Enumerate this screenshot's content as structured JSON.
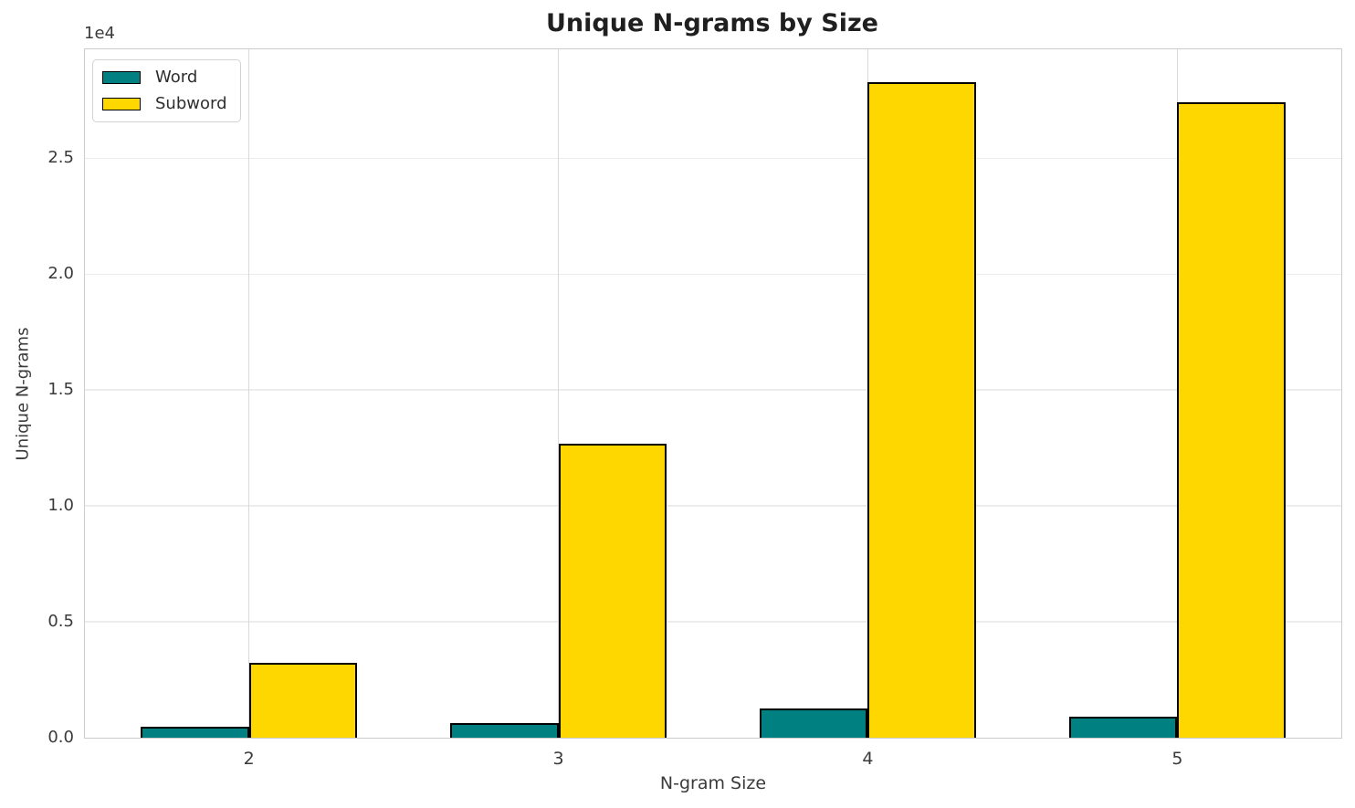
{
  "figure": {
    "background": "#ffffff"
  },
  "chart_data": {
    "type": "bar",
    "title": "Unique N-grams by Size",
    "xlabel": "N-gram Size",
    "ylabel": "Unique N-grams",
    "y_offset_label": "1e4",
    "categories": [
      "2",
      "3",
      "4",
      "5"
    ],
    "x": [
      2,
      3,
      4,
      5
    ],
    "series": [
      {
        "name": "Word",
        "color": "#008080",
        "edge_color": "#000000",
        "values": [
          480,
          650,
          1280,
          900
        ]
      },
      {
        "name": "Subword",
        "color": "#FFD700",
        "edge_color": "#000000",
        "values": [
          3250,
          12700,
          28300,
          27400
        ]
      }
    ],
    "bar_width": 0.35,
    "xlim": [
      1.47,
      5.53
    ],
    "ylim": [
      0,
      29700
    ],
    "yticks": {
      "values": [
        0,
        5000,
        10000,
        15000,
        20000,
        25000
      ],
      "labels": [
        "0.0",
        "0.5",
        "1.0",
        "1.5",
        "2.0",
        "2.5"
      ]
    },
    "grid": true,
    "legend": {
      "position": "upper left"
    },
    "colors": {
      "grid_horizontal": "#ececec",
      "grid_vertical": "#d9d9d9",
      "spine": "#cccccc",
      "tick_text": "#3a3a3a",
      "title_text": "#1f1f1f"
    }
  }
}
